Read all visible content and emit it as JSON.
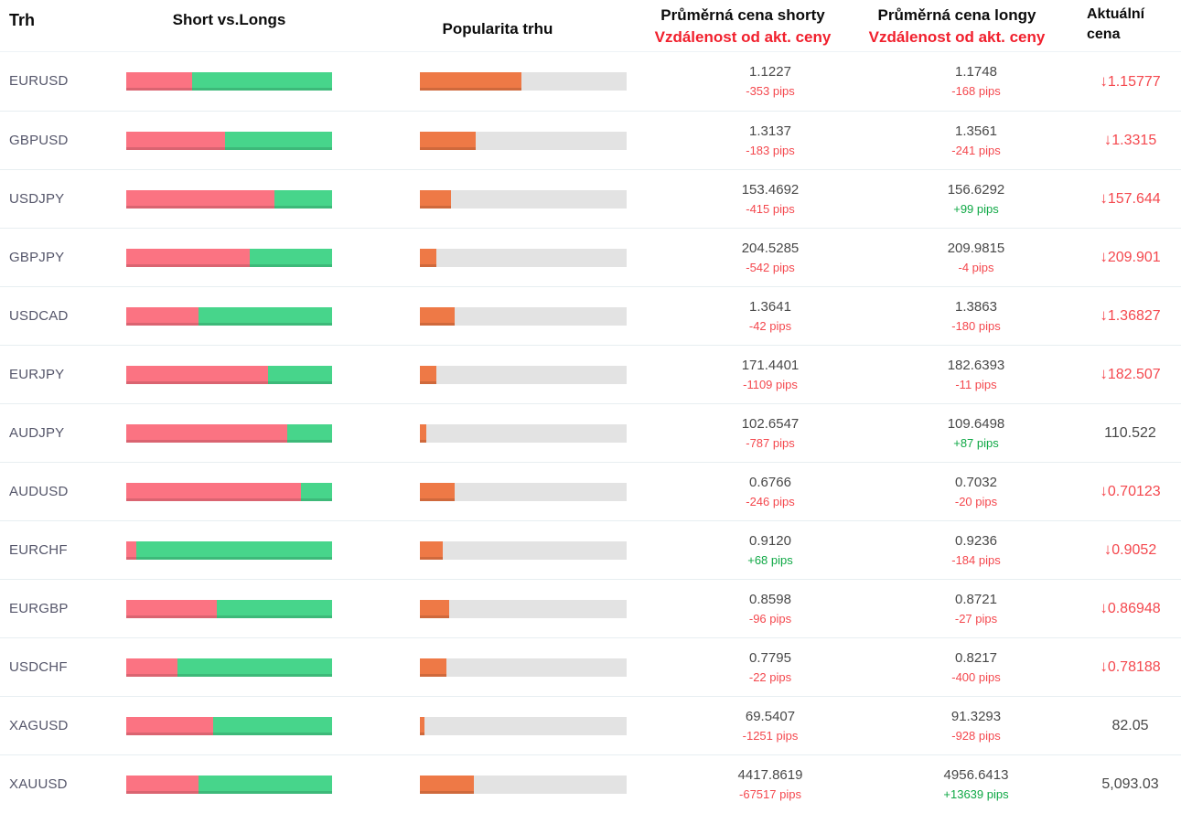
{
  "header": {
    "market": "Trh",
    "shorts_longs": "Short vs.Longs",
    "popularity": "Popularita trhu",
    "short_price_title": "Průměrná cena shorty",
    "short_price_sub": "Vzdálenost od akt. ceny",
    "long_price_title": "Průměrná cena longy",
    "long_price_sub": "Vzdálenost od akt. ceny",
    "actual_price_title": "Aktuální cena"
  },
  "icons": {
    "down_arrow": "↓"
  },
  "colors": {
    "short_bar": "#fb7382",
    "long_bar": "#47d58b",
    "popularity_bar": "#ee7946",
    "bar_track": "#e3e3e3",
    "negative_text": "#f4484e",
    "positive_text": "#0fa845",
    "header_red": "#f1202d",
    "price_text": "#484848",
    "market_text": "#55566a"
  },
  "rows": [
    {
      "market": "EURUSD",
      "short_pct": 32,
      "long_pct": 68,
      "popularity_pct": 49,
      "short_price": "1.1227",
      "short_dist": "-353 pips",
      "short_dist_sign": "negative",
      "long_price": "1.1748",
      "long_dist": "-168 pips",
      "long_dist_sign": "negative",
      "actual_price": "1.15777",
      "actual_trend": "down"
    },
    {
      "market": "GBPUSD",
      "short_pct": 48,
      "long_pct": 52,
      "popularity_pct": 27,
      "short_price": "1.3137",
      "short_dist": "-183 pips",
      "short_dist_sign": "negative",
      "long_price": "1.3561",
      "long_dist": "-241 pips",
      "long_dist_sign": "negative",
      "actual_price": "1.3315",
      "actual_trend": "down"
    },
    {
      "market": "USDJPY",
      "short_pct": 72,
      "long_pct": 28,
      "popularity_pct": 15,
      "short_price": "153.4692",
      "short_dist": "-415 pips",
      "short_dist_sign": "negative",
      "long_price": "156.6292",
      "long_dist": "+99 pips",
      "long_dist_sign": "positive",
      "actual_price": "157.644",
      "actual_trend": "down"
    },
    {
      "market": "GBPJPY",
      "short_pct": 60,
      "long_pct": 40,
      "popularity_pct": 8,
      "short_price": "204.5285",
      "short_dist": "-542 pips",
      "short_dist_sign": "negative",
      "long_price": "209.9815",
      "long_dist": "-4 pips",
      "long_dist_sign": "negative",
      "actual_price": "209.901",
      "actual_trend": "down"
    },
    {
      "market": "USDCAD",
      "short_pct": 35,
      "long_pct": 65,
      "popularity_pct": 17,
      "short_price": "1.3641",
      "short_dist": "-42 pips",
      "short_dist_sign": "negative",
      "long_price": "1.3863",
      "long_dist": "-180 pips",
      "long_dist_sign": "negative",
      "actual_price": "1.36827",
      "actual_trend": "down"
    },
    {
      "market": "EURJPY",
      "short_pct": 69,
      "long_pct": 31,
      "popularity_pct": 8,
      "short_price": "171.4401",
      "short_dist": "-1109 pips",
      "short_dist_sign": "negative",
      "long_price": "182.6393",
      "long_dist": "-11 pips",
      "long_dist_sign": "negative",
      "actual_price": "182.507",
      "actual_trend": "down"
    },
    {
      "market": "AUDJPY",
      "short_pct": 78,
      "long_pct": 22,
      "popularity_pct": 3,
      "short_price": "102.6547",
      "short_dist": "-787 pips",
      "short_dist_sign": "negative",
      "long_price": "109.6498",
      "long_dist": "+87 pips",
      "long_dist_sign": "positive",
      "actual_price": "110.522",
      "actual_trend": "none"
    },
    {
      "market": "AUDUSD",
      "short_pct": 85,
      "long_pct": 15,
      "popularity_pct": 17,
      "short_price": "0.6766",
      "short_dist": "-246 pips",
      "short_dist_sign": "negative",
      "long_price": "0.7032",
      "long_dist": "-20 pips",
      "long_dist_sign": "negative",
      "actual_price": "0.70123",
      "actual_trend": "down"
    },
    {
      "market": "EURCHF",
      "short_pct": 5,
      "long_pct": 95,
      "popularity_pct": 11,
      "short_price": "0.9120",
      "short_dist": "+68 pips",
      "short_dist_sign": "positive",
      "long_price": "0.9236",
      "long_dist": "-184 pips",
      "long_dist_sign": "negative",
      "actual_price": "0.9052",
      "actual_trend": "down"
    },
    {
      "market": "EURGBP",
      "short_pct": 44,
      "long_pct": 56,
      "popularity_pct": 14,
      "short_price": "0.8598",
      "short_dist": "-96 pips",
      "short_dist_sign": "negative",
      "long_price": "0.8721",
      "long_dist": "-27 pips",
      "long_dist_sign": "negative",
      "actual_price": "0.86948",
      "actual_trend": "down"
    },
    {
      "market": "USDCHF",
      "short_pct": 25,
      "long_pct": 75,
      "popularity_pct": 13,
      "short_price": "0.7795",
      "short_dist": "-22 pips",
      "short_dist_sign": "negative",
      "long_price": "0.8217",
      "long_dist": "-400 pips",
      "long_dist_sign": "negative",
      "actual_price": "0.78188",
      "actual_trend": "down"
    },
    {
      "market": "XAGUSD",
      "short_pct": 42,
      "long_pct": 58,
      "popularity_pct": 2,
      "short_price": "69.5407",
      "short_dist": "-1251 pips",
      "short_dist_sign": "negative",
      "long_price": "91.3293",
      "long_dist": "-928 pips",
      "long_dist_sign": "negative",
      "actual_price": "82.05",
      "actual_trend": "none"
    },
    {
      "market": "XAUUSD",
      "short_pct": 35,
      "long_pct": 65,
      "popularity_pct": 26,
      "short_price": "4417.8619",
      "short_dist": "-67517 pips",
      "short_dist_sign": "negative",
      "long_price": "4956.6413",
      "long_dist": "+13639 pips",
      "long_dist_sign": "positive",
      "actual_price": "5,093.03",
      "actual_trend": "none"
    }
  ]
}
